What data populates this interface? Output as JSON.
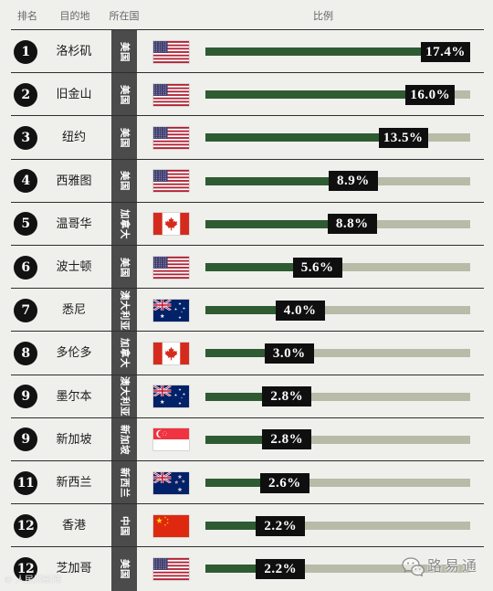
{
  "header": {
    "rank": "排名",
    "destination": "目的地",
    "country": "所在国",
    "ratio": "比例"
  },
  "colors": {
    "background": "#efefec",
    "separator": "#2e2e2e",
    "rank_circle": "#121212",
    "country_column": "#4b4b4b",
    "track": "#b7bba7",
    "fill": "#2f5b33",
    "label_box": "#0f0f0f"
  },
  "chart_data": {
    "type": "bar",
    "orientation": "horizontal",
    "categories": [
      "洛杉矶",
      "旧金山",
      "纽约",
      "西雅图",
      "温哥华",
      "波士顿",
      "悉尼",
      "多伦多",
      "墨尔本",
      "新加坡",
      "新西兰",
      "香港",
      "芝加哥"
    ],
    "ranks": [
      "1",
      "2",
      "3",
      "4",
      "5",
      "6",
      "7",
      "8",
      "9",
      "9",
      "11",
      "12",
      "12"
    ],
    "countries": [
      "美国",
      "美国",
      "美国",
      "美国",
      "加拿大",
      "美国",
      "澳大利亚",
      "加拿大",
      "澳大利亚",
      "新加坡",
      "新西兰",
      "中国",
      "美国"
    ],
    "flags": [
      "us-flag",
      "us-flag",
      "us-flag",
      "us-flag",
      "ca-flag",
      "us-flag",
      "au-flag",
      "ca-flag",
      "au-flag",
      "sg-flag",
      "nz-flag",
      "cn-flag",
      "us-flag"
    ],
    "values": [
      17.4,
      16.0,
      13.5,
      8.9,
      8.8,
      5.6,
      4.0,
      3.0,
      2.8,
      2.8,
      2.6,
      2.2,
      2.2
    ],
    "value_labels": [
      "17.4%",
      "16.0%",
      "13.5%",
      "8.9%",
      "8.8%",
      "5.6%",
      "4.0%",
      "3.0%",
      "2.8%",
      "2.8%",
      "2.6%",
      "2.2%",
      "2.2%"
    ],
    "grid": false
  },
  "watermarks": {
    "account_icon": "wechat-icon",
    "account_name": "路易通",
    "source": "© 人民网新闻"
  }
}
